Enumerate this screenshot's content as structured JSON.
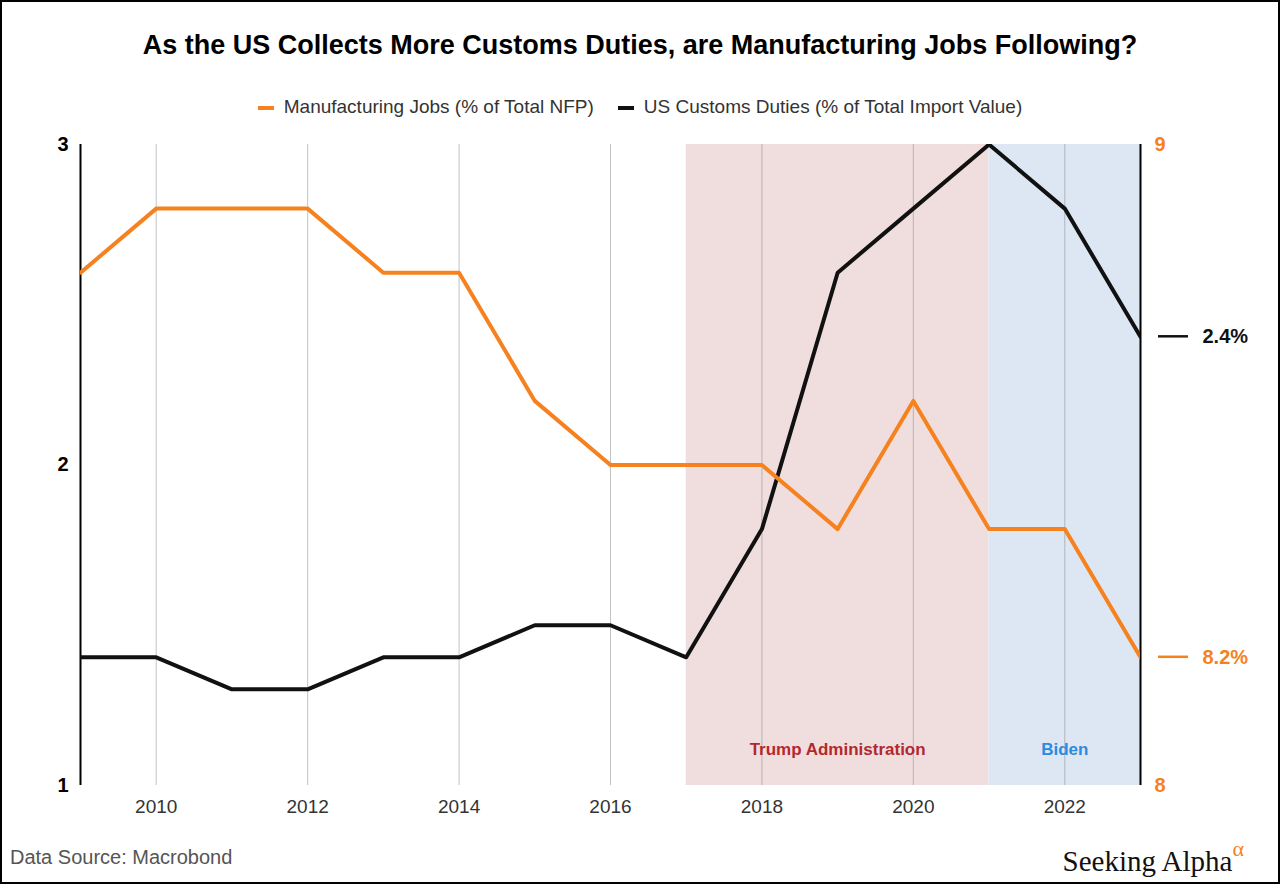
{
  "chart_data": {
    "type": "line",
    "title": "As the US Collects More Customs Duties, are Manufacturing Jobs Following?",
    "x": [
      2009,
      2010,
      2011,
      2012,
      2013,
      2014,
      2015,
      2016,
      2017,
      2018,
      2019,
      2020,
      2021,
      2022,
      2023
    ],
    "xlim": [
      2009,
      2023
    ],
    "xticks": [
      2010,
      2012,
      2014,
      2016,
      2018,
      2020,
      2022
    ],
    "ylim": [
      1,
      3
    ],
    "yticks": [
      1,
      2,
      3
    ],
    "y2lim": [
      8,
      9
    ],
    "y2ticks": [
      8,
      9
    ],
    "grid": true,
    "legend": "top",
    "data_labels": true,
    "series": [
      {
        "name": "Manufacturing Jobs (% of Total NFP)",
        "color": "#f5821f",
        "axis": "y2",
        "values": [
          8.8,
          8.9,
          8.9,
          8.9,
          8.8,
          8.8,
          8.6,
          8.5,
          8.5,
          8.5,
          8.4,
          8.6,
          8.4,
          8.4,
          8.2
        ],
        "value_labels": [
          null,
          null,
          null,
          null,
          null,
          null,
          null,
          null,
          null,
          null,
          null,
          null,
          null,
          null,
          "8.2%"
        ]
      },
      {
        "name": "US Customs Duties (% of Total Import Value)",
        "color": "#111111",
        "values": [
          1.4,
          1.4,
          1.3,
          1.3,
          1.4,
          1.4,
          1.5,
          1.5,
          1.4,
          1.8,
          2.6,
          2.8,
          3.0,
          2.8,
          2.4
        ],
        "value_labels": [
          null,
          null,
          null,
          null,
          null,
          null,
          null,
          null,
          null,
          null,
          null,
          null,
          null,
          null,
          "2.4%"
        ]
      }
    ],
    "annotations": [
      {
        "text": "Trump Administration",
        "x": [
          2017,
          2021
        ],
        "color": "#f0dede",
        "text_color": "#b3282d"
      },
      {
        "text": "Biden",
        "x": [
          2021,
          2023
        ],
        "color": "#dde7f3",
        "text_color": "#2b8be0"
      }
    ],
    "caption": "Data Source: Macrobond",
    "credit": "Seeking Alpha",
    "credit_mark": "α"
  }
}
